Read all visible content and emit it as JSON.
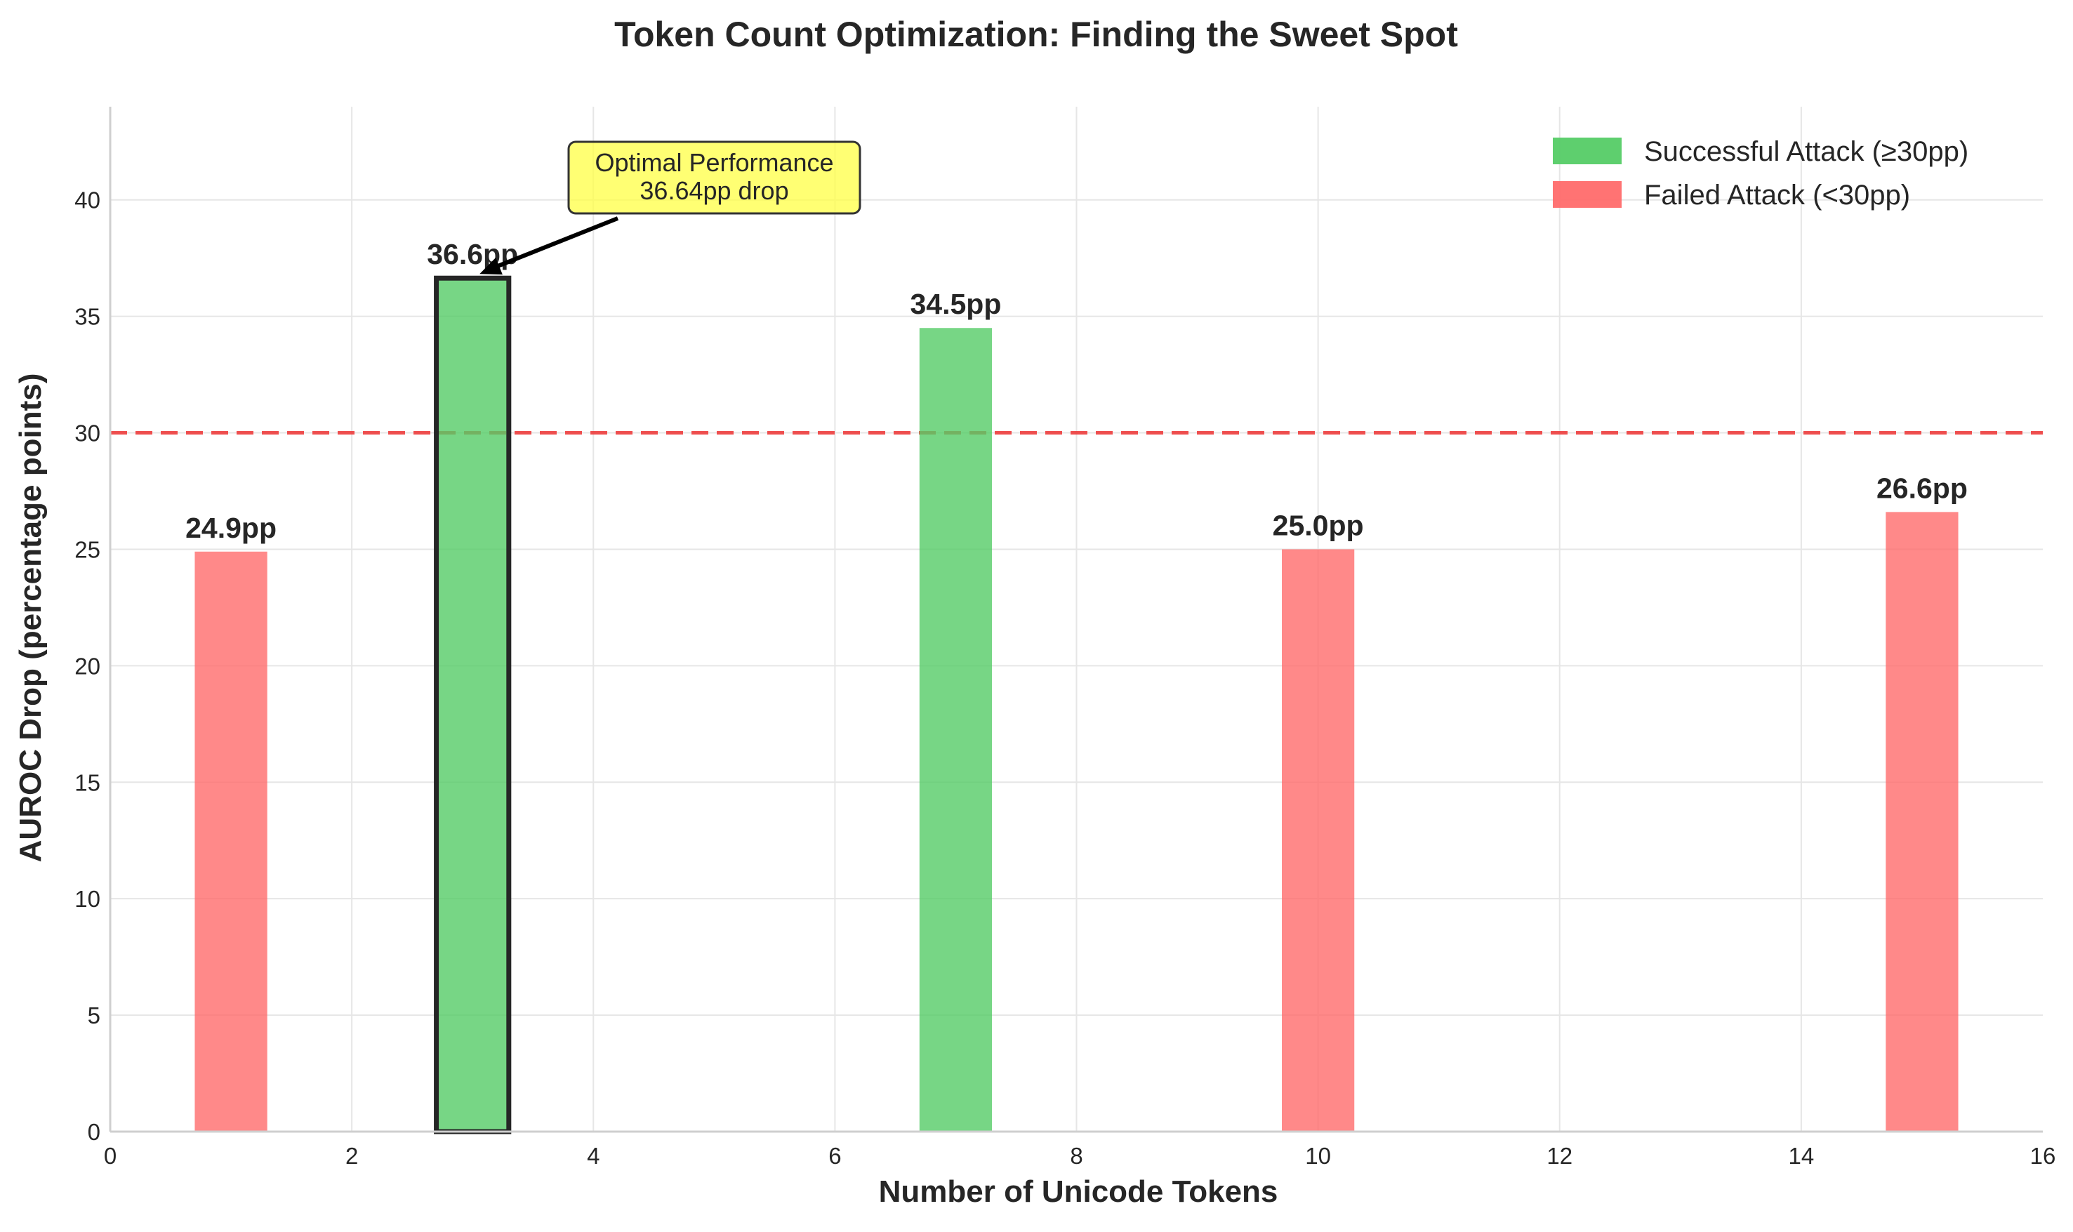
{
  "chart_data": {
    "type": "bar",
    "title": "Token Count Optimization: Finding the Sweet Spot",
    "xlabel": "Number of Unicode Tokens",
    "ylabel": "AUROC Drop (percentage points)",
    "xlim": [
      0,
      16
    ],
    "ylim": [
      0,
      44
    ],
    "xticks": [
      0,
      2,
      4,
      6,
      8,
      10,
      12,
      14,
      16
    ],
    "yticks": [
      0,
      5,
      10,
      15,
      20,
      25,
      30,
      35,
      40
    ],
    "bar_width": 0.6,
    "grid": true,
    "x": [
      1,
      3,
      7,
      10,
      15
    ],
    "values": [
      24.9,
      36.64,
      34.5,
      25.0,
      26.6
    ],
    "data_labels": [
      "24.9pp",
      "36.6pp",
      "34.5pp",
      "25.0pp",
      "26.6pp"
    ],
    "status": [
      "failed",
      "success",
      "success",
      "failed",
      "failed"
    ],
    "highlight_index": 1,
    "threshold": {
      "value": 30,
      "color": "#ee3333",
      "style": "dashed"
    },
    "colors": {
      "success": "#55cc66",
      "failed": "#ff6b6b",
      "highlight_edge": "#262626"
    },
    "legend": {
      "placement": "top-right",
      "entries": [
        {
          "label": "Successful Attack (≥30pp)",
          "color": "#55cc66"
        },
        {
          "label": "Failed Attack (<30pp)",
          "color": "#ff6b6b"
        }
      ]
    },
    "annotation": {
      "lines": [
        "Optimal Performance",
        "36.64pp drop"
      ],
      "target_x": 3,
      "target_y": 36.64,
      "box_color": "#ffff44"
    }
  }
}
